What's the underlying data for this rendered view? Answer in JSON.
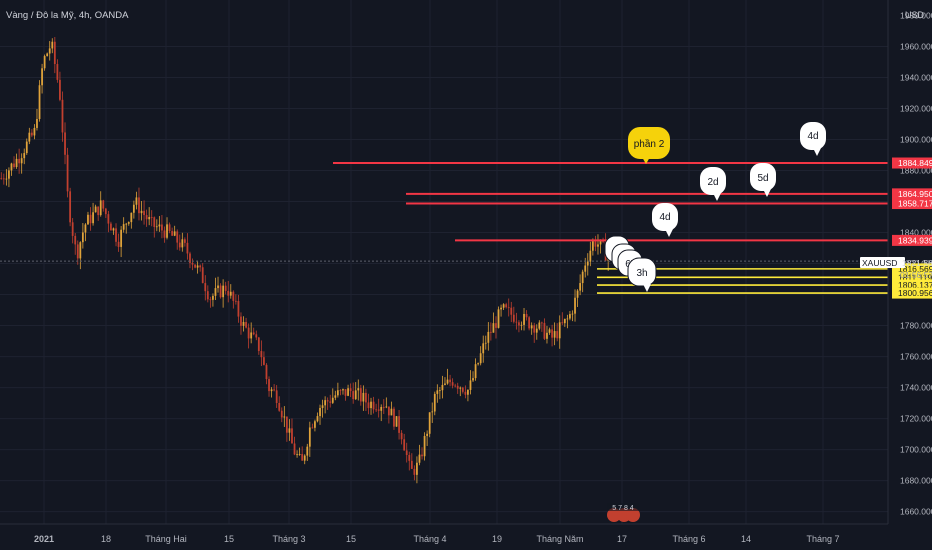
{
  "header": {
    "symbol_title": "Vàng / Đô la Mỹ, 4h, OANDA",
    "currency": "USD"
  },
  "colors": {
    "background": "#131722",
    "grid": "#1e2230",
    "candle_up": "#e0a33a",
    "candle_down": "#c2402f",
    "red_line": "#f23645",
    "yellow_line": "#ffeb3b",
    "callout_yellow": "#f5d20b"
  },
  "chart_data": {
    "type": "candlestick",
    "ylim": [
      1652,
      1990
    ],
    "y_ticks": [
      "1960.000",
      "1940.000",
      "1920.000",
      "1900.000",
      "1880.000",
      "1860.000",
      "1840.000",
      "1820.000",
      "1800.000",
      "1780.000",
      "1760.000",
      "1740.000",
      "1720.000",
      "1700.000",
      "1680.000",
      "1660.000"
    ],
    "y_top_partial": "1980.000",
    "x_labels": [
      "2021",
      "18",
      "Tháng Hai",
      "15",
      "Tháng 3",
      "15",
      "Tháng 4",
      "19",
      "Tháng Năm",
      "17",
      "Tháng 6",
      "14",
      "Tháng 7"
    ],
    "price_path_approx": [
      [
        0,
        1875
      ],
      [
        4,
        1888
      ],
      [
        8,
        1905
      ],
      [
        10,
        1950
      ],
      [
        12,
        1962
      ],
      [
        14,
        1930
      ],
      [
        16,
        1860
      ],
      [
        18,
        1825
      ],
      [
        20,
        1845
      ],
      [
        24,
        1858
      ],
      [
        28,
        1835
      ],
      [
        32,
        1860
      ],
      [
        36,
        1845
      ],
      [
        40,
        1840
      ],
      [
        44,
        1830
      ],
      [
        48,
        1812
      ],
      [
        50,
        1798
      ],
      [
        54,
        1805
      ],
      [
        58,
        1780
      ],
      [
        62,
        1765
      ],
      [
        64,
        1740
      ],
      [
        66,
        1735
      ],
      [
        68,
        1718
      ],
      [
        70,
        1700
      ],
      [
        72,
        1690
      ],
      [
        74,
        1715
      ],
      [
        76,
        1727
      ],
      [
        80,
        1735
      ],
      [
        84,
        1738
      ],
      [
        88,
        1730
      ],
      [
        92,
        1730
      ],
      [
        96,
        1710
      ],
      [
        98,
        1685
      ],
      [
        100,
        1690
      ],
      [
        104,
        1735
      ],
      [
        108,
        1745
      ],
      [
        112,
        1738
      ],
      [
        116,
        1770
      ],
      [
        120,
        1790
      ],
      [
        124,
        1785
      ],
      [
        128,
        1780
      ],
      [
        132,
        1772
      ],
      [
        136,
        1785
      ],
      [
        138,
        1800
      ],
      [
        140,
        1822
      ],
      [
        142,
        1835
      ],
      [
        144,
        1830
      ],
      [
        146,
        1821.561
      ]
    ],
    "current_price": {
      "symbol": "XAUUSD",
      "value": "1821.561",
      "countdown": "01:56:57"
    },
    "horizontal_levels": [
      {
        "value": 1884.849,
        "label": "1884.849",
        "color": "red"
      },
      {
        "value": 1864.95,
        "label": "1864.950",
        "color": "red"
      },
      {
        "value": 1858.717,
        "label": "1858.717",
        "color": "red"
      },
      {
        "value": 1834.939,
        "label": "1834.939",
        "color": "red"
      },
      {
        "value": 1816.569,
        "label": "1816.569",
        "color": "yellow"
      },
      {
        "value": 1811.119,
        "label": "1811.119",
        "color": "yellow"
      },
      {
        "value": 1806.137,
        "label": "1806.137",
        "color": "yellow"
      },
      {
        "value": 1800.956,
        "label": "1800.956",
        "color": "yellow"
      }
    ],
    "annotations": [
      "phần 2",
      "4d",
      "2d",
      "5d",
      "4d",
      "6'",
      "3h"
    ]
  },
  "footer": {
    "event_badge": "5 7 8 4"
  }
}
